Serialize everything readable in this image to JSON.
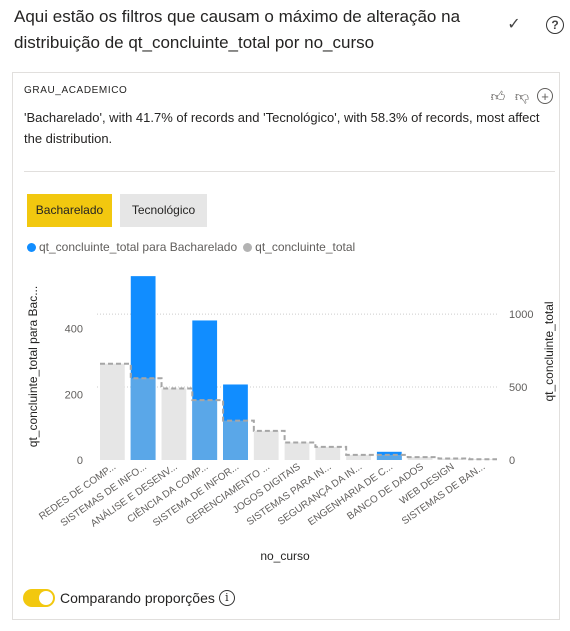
{
  "header": {
    "title": "Aqui estão os filtros que causam o máximo de alteração na distribuição de qt_concluinte_total por no_curso"
  },
  "card": {
    "attribute": "GRAU_ACADEMICO",
    "description": "'Bacharelado', with 41.7% of records and 'Tecnológico', with 58.3% of records, most affect the distribution.",
    "buttons": [
      "Bacharelado",
      "Tecnológico"
    ],
    "selected_button": "Bacharelado",
    "toggle_label": "Comparando proporções",
    "toggle_on": true,
    "icons": [
      "thumbs-up-icon",
      "thumbs-down-icon",
      "plus-circle-icon"
    ]
  },
  "chart_data": {
    "type": "bar",
    "categories": [
      "REDES DE COMP...",
      "SISTEMAS DE INFO...",
      "ANÁLISE E DESENV...",
      "CIÊNCIA DA COMP...",
      "SISTEMA DE INFOR...",
      "GERENCIAMENTO ...",
      "JOGOS DIGITAIS",
      "SISTEMAS PARA IN...",
      "SEGURANÇA DA IN...",
      "ENGENHARIA DE C...",
      "BANCO DE DADOS",
      "WEB DESIGN",
      "SISTEMAS DE BAN..."
    ],
    "series": [
      {
        "name": "qt_concluinte_total para Bacharelado",
        "axis": "left",
        "color": "#118DFF",
        "values": [
          0,
          560,
          0,
          425,
          230,
          0,
          0,
          0,
          0,
          25,
          0,
          0,
          0
        ]
      },
      {
        "name": "qt_concluinte_total",
        "axis": "right",
        "color": "#B3B3B3",
        "values": [
          660,
          560,
          490,
          410,
          270,
          200,
          120,
          90,
          35,
          35,
          20,
          10,
          5
        ]
      }
    ],
    "xlabel": "no_curso",
    "ylabel_left": "qt_concluinte_total para Bac...",
    "ylabel_right": "qt_concluinte_total",
    "yticks_left": [
      0,
      200,
      400
    ],
    "yticks_right": [
      0,
      500,
      1000
    ],
    "ylim_left": [
      0,
      600
    ],
    "ylim_right": [
      0,
      1350
    ]
  }
}
